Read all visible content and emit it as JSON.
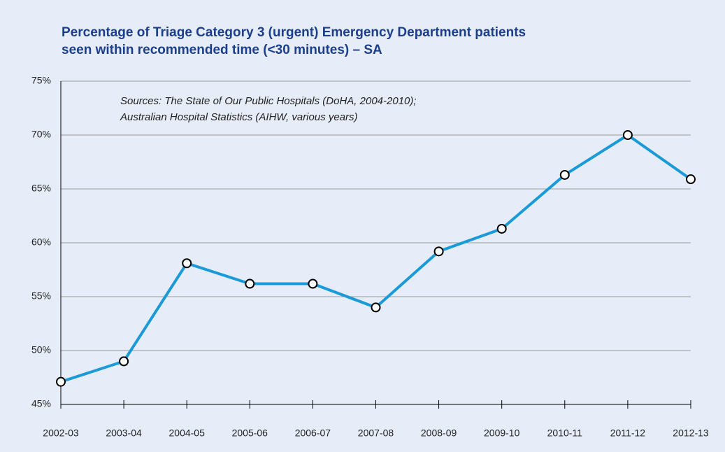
{
  "chart_data": {
    "type": "line",
    "title": [
      "Percentage of Triage Category 3 (urgent) Emergency Department patients",
      "seen within recommended time (<30 minutes) – SA"
    ],
    "annotation": [
      "Sources: The State of Our Public Hospitals (DoHA, 2004-2010);",
      "Australian Hospital Statistics (AIHW, various years)"
    ],
    "categories": [
      "2002-03",
      "2003-04",
      "2004-05",
      "2005-06",
      "2006-07",
      "2007-08",
      "2008-09",
      "2009-10",
      "2010-11",
      "2011-12",
      "2012-13"
    ],
    "values": [
      47.1,
      49.0,
      58.1,
      56.2,
      56.2,
      54.0,
      59.2,
      61.3,
      66.3,
      70.0,
      65.9
    ],
    "color": "#1a9ad6",
    "ylim": [
      45,
      75
    ],
    "yticks": [
      {
        "value": 45,
        "label": "45%"
      },
      {
        "value": 50,
        "label": "50%"
      },
      {
        "value": 55,
        "label": "55%"
      },
      {
        "value": 60,
        "label": "60%"
      },
      {
        "value": 65,
        "label": "65%"
      },
      {
        "value": 70,
        "label": "70%"
      },
      {
        "value": 75,
        "label": "75%"
      }
    ],
    "grid": true
  }
}
